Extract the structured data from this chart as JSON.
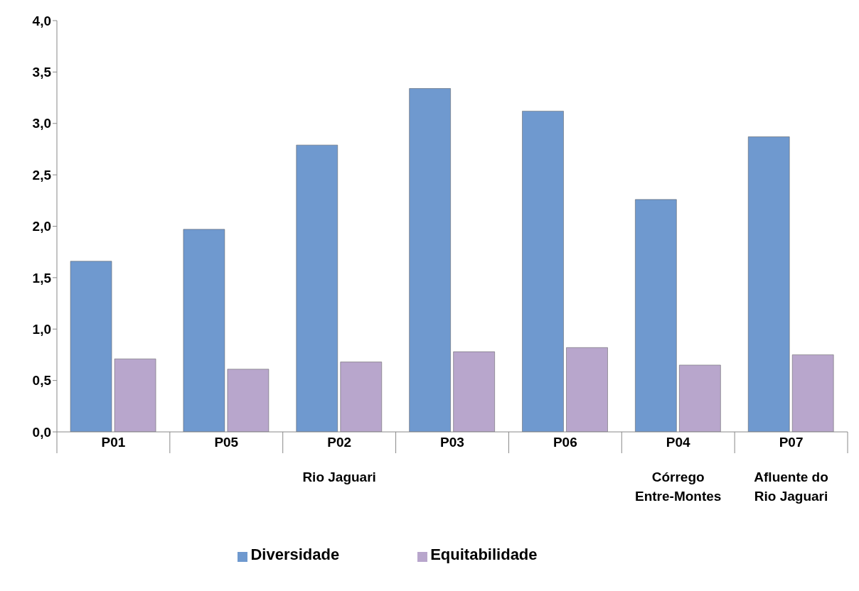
{
  "chart_data": {
    "type": "bar",
    "categories": [
      "P01",
      "P05",
      "P02",
      "P03",
      "P06",
      "P04",
      "P07"
    ],
    "series": [
      {
        "name": "Diversidade",
        "color": "#6f99cf",
        "values": [
          1.66,
          1.97,
          2.79,
          3.34,
          3.12,
          2.26,
          2.87
        ]
      },
      {
        "name": "Equitabilidade",
        "color": "#b8a6cc",
        "values": [
          0.71,
          0.61,
          0.68,
          0.78,
          0.82,
          0.65,
          0.75
        ]
      }
    ],
    "ylim": [
      0,
      4
    ],
    "yticks": [
      {
        "value": 0,
        "label": "0,0"
      },
      {
        "value": 0.5,
        "label": "0,5"
      },
      {
        "value": 1,
        "label": "1,0"
      },
      {
        "value": 1.5,
        "label": "1,5"
      },
      {
        "value": 2,
        "label": "2,0"
      },
      {
        "value": 2.5,
        "label": "2,5"
      },
      {
        "value": 3,
        "label": "3,0"
      },
      {
        "value": 3.5,
        "label": "3,5"
      },
      {
        "value": 4,
        "label": "4,0"
      }
    ],
    "annotations": [
      "Rio Jaguari",
      "Córrego Entre-Montes",
      "Afluente do Rio Jaguari"
    ],
    "grid": false,
    "legend": "bottom"
  }
}
